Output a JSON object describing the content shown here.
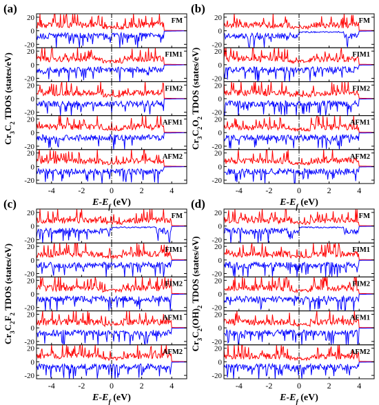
{
  "figure": {
    "series_colors": {
      "up": "#ff0000",
      "down": "#0000ff",
      "fermi_line": "#000000"
    }
  },
  "chart_data": [
    {
      "type": "line",
      "panel_label": "(a)",
      "ylabel_parts": [
        [
          "Cr",
          false
        ],
        [
          "3",
          true
        ],
        [
          "C",
          false
        ],
        [
          "2",
          true
        ],
        [
          " TDOS (states/eV)",
          false
        ]
      ],
      "xlabel_parts": [
        [
          "E",
          "i"
        ],
        [
          "-",
          ""
        ],
        [
          "E",
          "i"
        ],
        [
          "f",
          "is"
        ],
        [
          " (eV)",
          ""
        ]
      ],
      "xlim": [
        -5,
        5
      ],
      "xticks": [
        "-4",
        "-2",
        "0",
        "2",
        "4"
      ],
      "edge_up": 3.5,
      "edge_down": 3.5,
      "subplots": [
        {
          "name": "FM",
          "ylim": [
            -25,
            25
          ],
          "yticks": [
            "20",
            "0",
            "-20"
          ]
        },
        {
          "name": "FIM1",
          "ylim": [
            -25,
            25
          ],
          "yticks": [
            "20",
            "0",
            "-20"
          ]
        },
        {
          "name": "FIM2",
          "ylim": [
            -25,
            25
          ],
          "yticks": [
            "20",
            "0",
            "-20"
          ]
        },
        {
          "name": "AFM1",
          "ylim": [
            -25,
            25
          ],
          "yticks": [
            "20",
            "0",
            "-20"
          ]
        },
        {
          "name": "AFM2",
          "ylim": [
            -25,
            25
          ],
          "yticks": [
            "20",
            "0",
            "-20"
          ]
        }
      ]
    },
    {
      "type": "line",
      "panel_label": "(b)",
      "ylabel_parts": [
        [
          "Cr",
          false
        ],
        [
          "3",
          true
        ],
        [
          "C",
          false
        ],
        [
          "2",
          true
        ],
        [
          "O",
          false
        ],
        [
          "2",
          true
        ],
        [
          " TDOS (states/eV)",
          false
        ]
      ],
      "xlabel_parts": [
        [
          "E",
          "i"
        ],
        [
          "-",
          ""
        ],
        [
          "E",
          "i"
        ],
        [
          "f",
          "is"
        ],
        [
          " (eV)",
          ""
        ]
      ],
      "xlim": [
        -5,
        5
      ],
      "xticks": [
        "-4",
        "-2",
        "0",
        "2",
        "4"
      ],
      "edge_up": 4.0,
      "edge_down": 4.0,
      "subplots": [
        {
          "name": "FM",
          "ylim": [
            -25,
            25
          ],
          "yticks": [
            "20",
            "0",
            "-20"
          ]
        },
        {
          "name": "FIM1",
          "ylim": [
            -25,
            25
          ],
          "yticks": [
            "20",
            "0",
            "-20"
          ]
        },
        {
          "name": "FIM2",
          "ylim": [
            -25,
            25
          ],
          "yticks": [
            "20",
            "0",
            "-20"
          ]
        },
        {
          "name": "AFM1",
          "ylim": [
            -25,
            25
          ],
          "yticks": [
            "20",
            "0",
            "-20"
          ]
        },
        {
          "name": "AFM2",
          "ylim": [
            -25,
            25
          ],
          "yticks": [
            "20",
            "0",
            "-20"
          ]
        }
      ]
    },
    {
      "type": "line",
      "panel_label": "(c)",
      "ylabel_parts": [
        [
          "Cr",
          false
        ],
        [
          "3",
          true
        ],
        [
          "C",
          false
        ],
        [
          "2",
          true
        ],
        [
          "F",
          false
        ],
        [
          "2",
          true
        ],
        [
          " TDOS (states/eV)",
          false
        ]
      ],
      "xlabel_parts": [
        [
          "E",
          "i"
        ],
        [
          "-",
          ""
        ],
        [
          "E",
          "i"
        ],
        [
          "f",
          "is"
        ],
        [
          " (eV)",
          ""
        ]
      ],
      "xlim": [
        -5,
        5
      ],
      "xticks": [
        "-4",
        "-2",
        "0",
        "2",
        "4"
      ],
      "edge_up": 4.0,
      "edge_down": 4.0,
      "subplots": [
        {
          "name": "FM",
          "ylim": [
            -25,
            25
          ],
          "yticks": [
            "20",
            "0",
            "-20"
          ]
        },
        {
          "name": "FIM1",
          "ylim": [
            -25,
            25
          ],
          "yticks": [
            "20",
            "0",
            "-20"
          ]
        },
        {
          "name": "FIM2",
          "ylim": [
            -25,
            25
          ],
          "yticks": [
            "20",
            "0",
            "-20"
          ]
        },
        {
          "name": "AFM1",
          "ylim": [
            -25,
            25
          ],
          "yticks": [
            "20",
            "0",
            "-20"
          ]
        },
        {
          "name": "AFM2",
          "ylim": [
            -25,
            25
          ],
          "yticks": [
            "20",
            "0",
            "-20"
          ]
        }
      ]
    },
    {
      "type": "line",
      "panel_label": "(d)",
      "ylabel_parts": [
        [
          "Cr",
          false
        ],
        [
          "3",
          true
        ],
        [
          "C",
          false
        ],
        [
          "2",
          true
        ],
        [
          "(OH)",
          false
        ],
        [
          "2",
          true
        ],
        [
          " TDOS (states/eV)",
          false
        ]
      ],
      "xlabel_parts": [
        [
          "E",
          "i"
        ],
        [
          "-",
          ""
        ],
        [
          "E",
          "i"
        ],
        [
          "f",
          "is"
        ],
        [
          " (eV)",
          ""
        ]
      ],
      "xlim": [
        -5,
        5
      ],
      "xticks": [
        "-4",
        "-2",
        "0",
        "2",
        "4"
      ],
      "edge_up": 4.0,
      "edge_down": 4.0,
      "subplots": [
        {
          "name": "FM",
          "ylim": [
            -25,
            25
          ],
          "yticks": [
            "20",
            "0",
            "-20"
          ]
        },
        {
          "name": "FIM1",
          "ylim": [
            -25,
            25
          ],
          "yticks": [
            "20",
            "0",
            "-20"
          ]
        },
        {
          "name": "FIM2",
          "ylim": [
            -25,
            25
          ],
          "yticks": [
            "20",
            "0",
            "-20"
          ]
        },
        {
          "name": "AFM1",
          "ylim": [
            -25,
            25
          ],
          "yticks": [
            "20",
            "0",
            "-20"
          ]
        },
        {
          "name": "AFM2",
          "ylim": [
            -25,
            25
          ],
          "yticks": [
            "20",
            "0",
            "-20"
          ]
        }
      ]
    }
  ]
}
